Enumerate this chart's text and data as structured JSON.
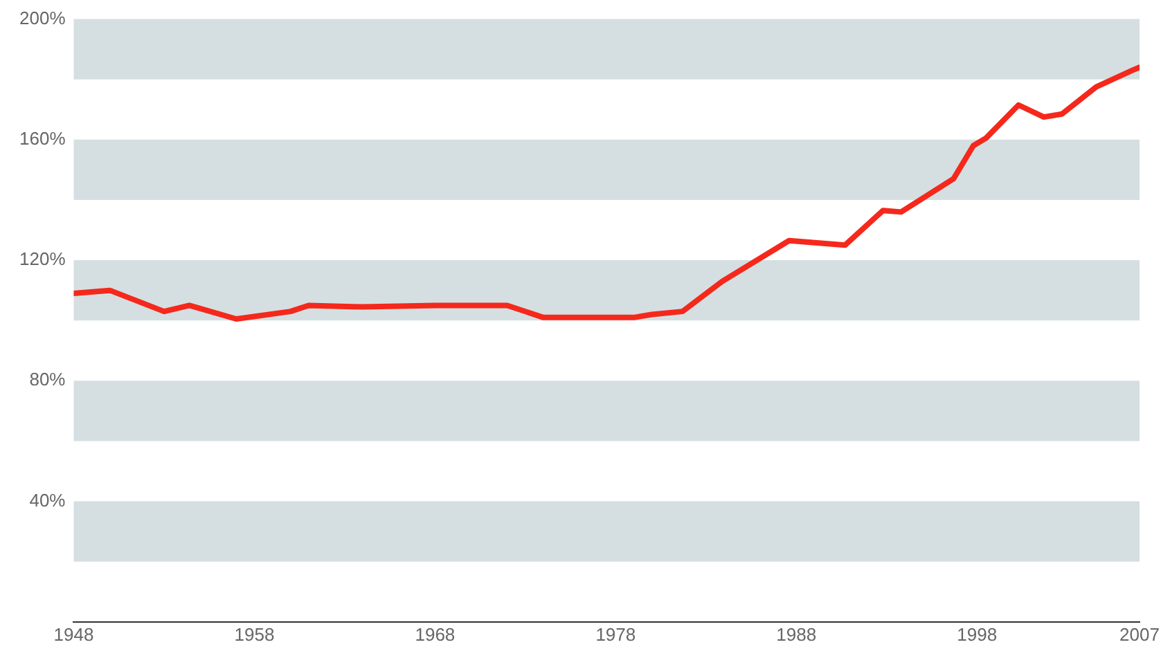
{
  "chart_data": {
    "type": "line",
    "x": [
      1948,
      1950,
      1953,
      1954.4,
      1957,
      1960,
      1961,
      1964,
      1968,
      1972,
      1974,
      1979,
      1980,
      1981.7,
      1983.9,
      1987.6,
      1990.7,
      1992.8,
      1993.8,
      1996.7,
      1997.8,
      1998.5,
      2000.3,
      2001.7,
      2002.7,
      2004.6,
      2006.6,
      2007
    ],
    "series": [
      {
        "color": "#f5281c",
        "values": [
          109,
          110,
          103,
          105,
          100.5,
          103,
          105,
          104.5,
          105,
          105,
          101,
          101,
          102,
          103,
          113,
          126.5,
          125,
          136.5,
          136,
          147,
          158,
          160.5,
          171.5,
          167.5,
          168.5,
          177.5,
          183,
          184
        ]
      }
    ],
    "xlim": [
      1948,
      2007
    ],
    "xticks": [
      1948,
      1958,
      1968,
      1978,
      1988,
      1998,
      2007
    ],
    "ylim": [
      0,
      200
    ],
    "yticks": [
      {
        "value": 40,
        "label": "40%"
      },
      {
        "value": 80,
        "label": "80%"
      },
      {
        "value": 120,
        "label": "120%"
      },
      {
        "value": 160,
        "label": "160%"
      },
      {
        "value": 200,
        "label": "200%"
      }
    ],
    "bands": [
      {
        "axis": "y",
        "from": 20,
        "to": 40,
        "color": "#d5dfe1"
      },
      {
        "axis": "y",
        "from": 60,
        "to": 80,
        "color": "#d5dfe1"
      },
      {
        "axis": "y",
        "from": 100,
        "to": 120,
        "color": "#d5dfe1"
      },
      {
        "axis": "y",
        "from": 140,
        "to": 160,
        "color": "#d5dfe1"
      },
      {
        "axis": "y",
        "from": 180,
        "to": 200,
        "color": "#d5dfe1"
      }
    ],
    "grid": false,
    "legend": false,
    "marker": "none",
    "line_style": "solid"
  }
}
